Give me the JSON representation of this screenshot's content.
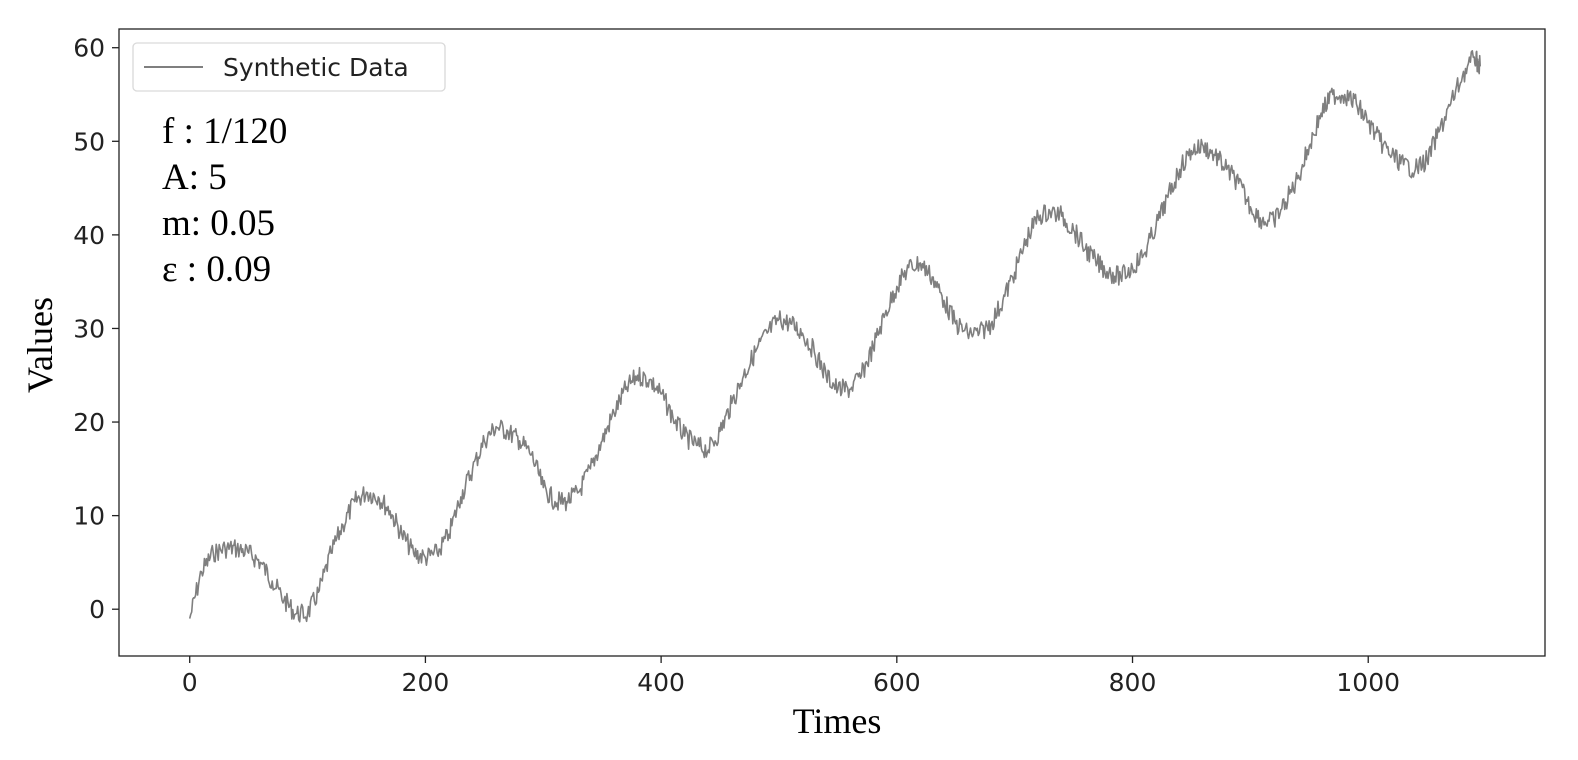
{
  "chart_data": {
    "type": "line",
    "title": "",
    "xlabel": "Times",
    "ylabel": "Values",
    "xlim": [
      -60,
      1150
    ],
    "ylim": [
      -5,
      62
    ],
    "xticks": [
      0,
      200,
      400,
      600,
      800,
      1000
    ],
    "yticks": [
      0,
      10,
      20,
      30,
      40,
      50,
      60
    ],
    "x_tick_labels": [
      "0",
      "200",
      "400",
      "600",
      "800",
      "1000"
    ],
    "y_tick_labels": [
      "0",
      "10",
      "20",
      "30",
      "40",
      "50",
      "60"
    ],
    "grid": false,
    "legend": {
      "position": "top-left",
      "entries": [
        "Synthetic Data"
      ]
    },
    "annotations": [
      "f : 1/120",
      "A: 5",
      "m: 0.05",
      "ε : 0.09"
    ],
    "series": [
      {
        "name": "Synthetic Data",
        "color": "#7f7f7f",
        "x": [
          0,
          10,
          20,
          30,
          40,
          50,
          60,
          70,
          80,
          90,
          100,
          110,
          120,
          130,
          140,
          150,
          160,
          170,
          180,
          190,
          200,
          210,
          220,
          230,
          240,
          250,
          260,
          270,
          280,
          290,
          300,
          310,
          320,
          330,
          340,
          350,
          360,
          370,
          380,
          390,
          400,
          410,
          420,
          430,
          440,
          450,
          460,
          470,
          480,
          490,
          500,
          510,
          520,
          530,
          540,
          550,
          560,
          570,
          580,
          590,
          600,
          610,
          620,
          630,
          640,
          650,
          660,
          670,
          680,
          690,
          700,
          710,
          720,
          730,
          740,
          750,
          760,
          770,
          780,
          790,
          800,
          810,
          820,
          830,
          840,
          850,
          860,
          870,
          880,
          890,
          900,
          910,
          920,
          930,
          940,
          950,
          960,
          970,
          980,
          990,
          1000,
          1010,
          1020,
          1030,
          1040,
          1050,
          1060,
          1070,
          1080,
          1090,
          1095
        ],
        "y": [
          -1,
          4,
          6,
          6.5,
          6.5,
          6,
          5,
          3,
          1,
          -0.5,
          -0.5,
          2,
          6,
          9,
          11.5,
          12.5,
          12,
          10.5,
          8,
          6,
          5.5,
          6,
          8,
          12,
          15,
          18,
          19.5,
          19,
          18,
          16.5,
          13,
          11.5,
          11.5,
          12.5,
          15,
          18,
          21,
          23.5,
          25,
          24.5,
          23,
          20.5,
          18.5,
          17.5,
          17,
          19,
          22,
          25,
          27.5,
          29.5,
          31,
          30.5,
          29.5,
          27.5,
          25,
          23.5,
          23.5,
          25,
          28,
          31.5,
          34.5,
          36.5,
          37,
          35.5,
          33,
          30.5,
          29.5,
          29.5,
          30.5,
          33,
          36,
          39.5,
          42,
          42.5,
          42,
          40.5,
          38.5,
          37,
          36,
          35.5,
          36.5,
          38,
          41,
          44,
          47,
          49,
          49.5,
          48.5,
          47,
          45.5,
          43,
          41.5,
          41.5,
          43.5,
          46,
          49.5,
          53,
          55,
          55,
          54,
          52,
          50,
          48.5,
          47.5,
          47,
          48,
          51,
          54,
          57,
          59,
          58
        ]
      }
    ]
  }
}
